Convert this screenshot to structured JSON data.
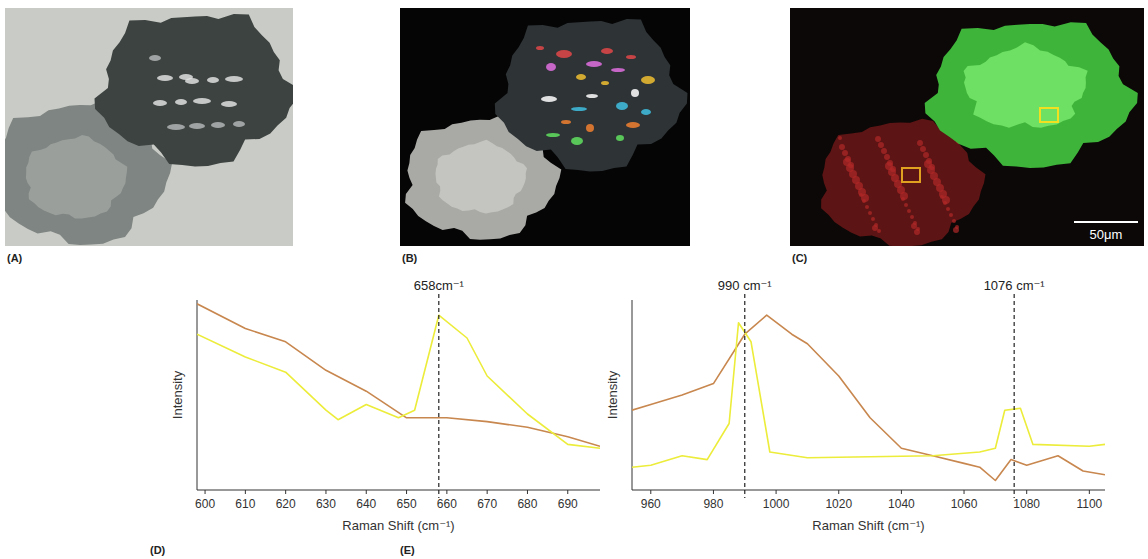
{
  "images": [
    {
      "label": "(A)"
    },
    {
      "label": "(B)"
    },
    {
      "label": "(C)",
      "scale_bar": "50μm"
    }
  ],
  "chart_data": [
    {
      "type": "line",
      "title": "(D)",
      "x_label": "Raman Shift (cm⁻¹)",
      "y_label": "Intensity",
      "xlim": [
        598,
        698
      ],
      "xticks": [
        600,
        610,
        620,
        630,
        640,
        650,
        660,
        670,
        680,
        690
      ],
      "ylim": [
        0,
        100
      ],
      "tick_labels": "x",
      "grid": false,
      "annotations": [
        {
          "x": 658,
          "text": "658cm⁻¹"
        }
      ],
      "series": [
        {
          "color": "#c8874e",
          "x": [
            598,
            610,
            620,
            630,
            640,
            650,
            660,
            670,
            680,
            690,
            698
          ],
          "values": [
            98,
            85,
            78,
            63,
            52,
            38,
            38,
            36,
            33,
            28,
            23
          ]
        },
        {
          "color": "#ecec3a",
          "x": [
            598,
            610,
            620,
            630,
            633,
            640,
            648,
            652,
            658,
            665,
            670,
            680,
            690,
            698
          ],
          "values": [
            82,
            70,
            62,
            42,
            37,
            45,
            38,
            42,
            92,
            80,
            60,
            40,
            24,
            22
          ]
        }
      ]
    },
    {
      "type": "line",
      "title": "(E)",
      "x_label": "Raman Shift (cm⁻¹)",
      "y_label": "Intensity",
      "xlim": [
        954,
        1105
      ],
      "xticks": [
        960,
        980,
        1000,
        1020,
        1040,
        1060,
        1080,
        1100
      ],
      "ylim": [
        0,
        100
      ],
      "tick_labels": "x",
      "grid": false,
      "annotations": [
        {
          "x": 990,
          "text": "990 cm⁻¹"
        },
        {
          "x": 1076,
          "text": "1076 cm⁻¹"
        }
      ],
      "series": [
        {
          "color": "#c8874e",
          "x": [
            954,
            960,
            970,
            980,
            990,
            997,
            1005,
            1010,
            1020,
            1030,
            1040,
            1050,
            1060,
            1065,
            1070,
            1075,
            1080,
            1090,
            1098,
            1105
          ],
          "values": [
            42,
            45,
            50,
            56,
            82,
            92,
            82,
            77,
            60,
            38,
            22,
            18,
            14,
            12,
            5,
            16,
            13,
            18,
            10,
            8
          ]
        },
        {
          "color": "#ecec3a",
          "x": [
            954,
            960,
            970,
            978,
            985,
            988,
            992,
            998,
            1010,
            1050,
            1065,
            1070,
            1073,
            1078,
            1082,
            1100,
            1105
          ],
          "values": [
            12,
            13,
            18,
            16,
            35,
            88,
            78,
            20,
            17,
            18,
            20,
            22,
            42,
            43,
            24,
            23,
            24
          ]
        }
      ]
    }
  ]
}
